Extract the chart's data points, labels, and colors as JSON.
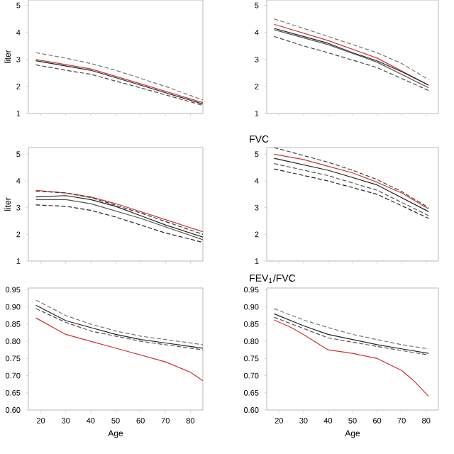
{
  "chart_data": [
    {
      "type": "line",
      "ylabel": "liter",
      "xlim": [
        15,
        85
      ],
      "ylim": [
        1,
        5.2
      ],
      "xticks": [
        20,
        30,
        40,
        50,
        60,
        70,
        80
      ],
      "yticks": [
        1,
        2,
        3,
        4,
        5
      ],
      "tick_labels": "y",
      "series": [
        {
          "color": "#777777",
          "line_style": "dashed",
          "x": [
            18,
            30,
            40,
            50,
            60,
            70,
            85
          ],
          "values": [
            3.25,
            3.05,
            2.85,
            2.6,
            2.3,
            2.0,
            1.5
          ]
        },
        {
          "color": "#cc3333",
          "line_style": "solid",
          "x": [
            18,
            40,
            60,
            85
          ],
          "values": [
            3.0,
            2.65,
            2.1,
            1.4
          ]
        },
        {
          "color": "#222222",
          "line_style": "solid",
          "x": [
            18,
            40,
            60,
            85
          ],
          "values": [
            2.95,
            2.6,
            2.05,
            1.35
          ]
        },
        {
          "color": "#444444",
          "line_style": "dashed",
          "x": [
            18,
            30,
            40,
            60,
            85
          ],
          "values": [
            2.8,
            2.6,
            2.45,
            1.95,
            1.3
          ]
        }
      ]
    },
    {
      "type": "line",
      "xlim": [
        15,
        85
      ],
      "ylim": [
        1,
        5.2
      ],
      "xticks": [
        20,
        30,
        40,
        50,
        60,
        70,
        80
      ],
      "yticks": [
        1,
        2,
        3,
        4,
        5
      ],
      "tick_labels": "y",
      "series": [
        {
          "color": "#777777",
          "line_style": "dashed",
          "x": [
            18,
            30,
            40,
            50,
            60,
            70,
            81
          ],
          "values": [
            4.5,
            4.15,
            3.85,
            3.55,
            3.25,
            2.85,
            2.25
          ]
        },
        {
          "color": "#cc3333",
          "line_style": "solid",
          "x": [
            18,
            40,
            60,
            81
          ],
          "values": [
            4.3,
            3.7,
            3.05,
            2.05
          ]
        },
        {
          "color": "#222222",
          "line_style": "solid",
          "x": [
            18,
            30,
            40,
            50,
            60,
            70,
            81
          ],
          "values": [
            4.15,
            3.85,
            3.6,
            3.25,
            2.95,
            2.55,
            2.05
          ]
        },
        {
          "color": "#555555",
          "line_style": "solid",
          "x": [
            18,
            40,
            60,
            81
          ],
          "values": [
            4.1,
            3.55,
            2.9,
            1.95
          ]
        },
        {
          "color": "#444444",
          "line_style": "dashed",
          "x": [
            18,
            30,
            40,
            60,
            81
          ],
          "values": [
            3.85,
            3.5,
            3.25,
            2.7,
            1.85
          ]
        }
      ]
    },
    {
      "type": "line",
      "ylabel": "liter",
      "xlim": [
        15,
        85
      ],
      "ylim": [
        1,
        5.25
      ],
      "xticks": [
        20,
        30,
        40,
        50,
        60,
        70,
        80
      ],
      "yticks": [
        1,
        2,
        3,
        4,
        5
      ],
      "tick_labels": "y",
      "series": [
        {
          "color": "#cc3333",
          "line_style": "solid",
          "x": [
            18,
            30,
            40,
            50,
            60,
            70,
            85
          ],
          "values": [
            3.65,
            3.55,
            3.4,
            3.15,
            2.85,
            2.55,
            2.1
          ]
        },
        {
          "color": "#333333",
          "line_style": "dashed",
          "x": [
            18,
            30,
            40,
            60,
            85
          ],
          "values": [
            3.62,
            3.55,
            3.38,
            2.8,
            2.0
          ]
        },
        {
          "color": "#222222",
          "line_style": "solid",
          "x": [
            18,
            30,
            40,
            50,
            60,
            70,
            85
          ],
          "values": [
            3.4,
            3.45,
            3.3,
            3.05,
            2.7,
            2.35,
            1.9
          ]
        },
        {
          "color": "#555555",
          "line_style": "solid",
          "x": [
            18,
            30,
            40,
            60,
            85
          ],
          "values": [
            3.3,
            3.3,
            3.15,
            2.6,
            1.8
          ]
        },
        {
          "color": "#222222",
          "line_style": "dashed",
          "x": [
            18,
            30,
            40,
            50,
            60,
            70,
            85
          ],
          "values": [
            3.1,
            3.05,
            2.9,
            2.65,
            2.35,
            2.05,
            1.7
          ]
        }
      ]
    },
    {
      "type": "line",
      "title": "FVC",
      "xlim": [
        15,
        85
      ],
      "ylim": [
        1,
        5.25
      ],
      "xticks": [
        20,
        30,
        40,
        50,
        60,
        70,
        80
      ],
      "yticks": [
        1,
        2,
        3,
        4,
        5
      ],
      "tick_labels": "y",
      "series": [
        {
          "color": "#444444",
          "line_style": "dashed",
          "x": [
            18,
            30,
            40,
            50,
            60,
            70,
            81
          ],
          "values": [
            5.25,
            4.95,
            4.7,
            4.4,
            4.05,
            3.6,
            3.0
          ]
        },
        {
          "color": "#cc3333",
          "line_style": "solid",
          "x": [
            18,
            30,
            40,
            50,
            60,
            70,
            81
          ],
          "values": [
            5.0,
            4.8,
            4.55,
            4.3,
            3.95,
            3.55,
            2.95
          ]
        },
        {
          "color": "#222222",
          "line_style": "solid",
          "x": [
            18,
            40,
            60,
            81
          ],
          "values": [
            4.85,
            4.4,
            3.85,
            2.85
          ]
        },
        {
          "color": "#555555",
          "line_style": "dashed",
          "x": [
            18,
            40,
            60,
            81
          ],
          "values": [
            4.65,
            4.2,
            3.65,
            2.7
          ]
        },
        {
          "color": "#222222",
          "line_style": "dashed",
          "x": [
            18,
            40,
            60,
            81
          ],
          "values": [
            4.45,
            4.0,
            3.5,
            2.6
          ]
        }
      ]
    },
    {
      "type": "line",
      "xlabel": "Age",
      "xlim": [
        15,
        85
      ],
      "ylim": [
        0.6,
        0.955
      ],
      "xticks": [
        20,
        30,
        40,
        50,
        60,
        70,
        80
      ],
      "yticks": [
        {
          "value": 0.6,
          "label": "0.60"
        },
        {
          "value": 0.65,
          "label": "0.65"
        },
        {
          "value": 0.7,
          "label": "0.70"
        },
        {
          "value": 0.75,
          "label": "0.75"
        },
        {
          "value": 0.8,
          "label": "0.80"
        },
        {
          "value": 0.85,
          "label": "0.85"
        },
        {
          "value": 0.9,
          "label": "0.90"
        },
        {
          "value": 0.95,
          "label": "0.95"
        }
      ],
      "series": [
        {
          "color": "#777777",
          "line_style": "dashed",
          "x": [
            18,
            30,
            40,
            50,
            60,
            70,
            85
          ],
          "values": [
            0.92,
            0.875,
            0.85,
            0.83,
            0.815,
            0.805,
            0.79
          ]
        },
        {
          "color": "#222222",
          "line_style": "solid",
          "x": [
            18,
            30,
            40,
            50,
            60,
            70,
            85
          ],
          "values": [
            0.905,
            0.86,
            0.84,
            0.82,
            0.805,
            0.795,
            0.78
          ]
        },
        {
          "color": "#555555",
          "line_style": "dashed",
          "x": [
            18,
            30,
            40,
            60,
            85
          ],
          "values": [
            0.895,
            0.855,
            0.83,
            0.8,
            0.775
          ]
        },
        {
          "color": "#cc3333",
          "line_style": "solid",
          "x": [
            18,
            30,
            40,
            50,
            60,
            70,
            80,
            85
          ],
          "values": [
            0.868,
            0.82,
            0.8,
            0.78,
            0.76,
            0.74,
            0.71,
            0.685
          ]
        }
      ]
    },
    {
      "type": "line",
      "title": "FEV$_{1}$/FVC",
      "xlabel": "Age",
      "xlim": [
        15,
        85
      ],
      "ylim": [
        0.6,
        0.955
      ],
      "xticks": [
        20,
        30,
        40,
        50,
        60,
        70,
        80
      ],
      "yticks": [
        {
          "value": 0.6,
          "label": "0.60"
        },
        {
          "value": 0.65,
          "label": "0.65"
        },
        {
          "value": 0.7,
          "label": "0.70"
        },
        {
          "value": 0.75,
          "label": "0.75"
        },
        {
          "value": 0.8,
          "label": "0.80"
        },
        {
          "value": 0.85,
          "label": "0.85"
        },
        {
          "value": 0.9,
          "label": "0.90"
        },
        {
          "value": 0.95,
          "label": "0.95"
        }
      ],
      "series": [
        {
          "color": "#777777",
          "line_style": "dashed",
          "x": [
            18,
            30,
            40,
            50,
            60,
            70,
            81
          ],
          "values": [
            0.895,
            0.862,
            0.84,
            0.82,
            0.805,
            0.79,
            0.778
          ]
        },
        {
          "color": "#222222",
          "line_style": "solid",
          "x": [
            18,
            30,
            40,
            50,
            60,
            70,
            81
          ],
          "values": [
            0.88,
            0.845,
            0.82,
            0.805,
            0.79,
            0.778,
            0.765
          ]
        },
        {
          "color": "#555555",
          "line_style": "dashed",
          "x": [
            18,
            40,
            60,
            81
          ],
          "values": [
            0.87,
            0.81,
            0.785,
            0.76
          ]
        },
        {
          "color": "#cc3333",
          "line_style": "solid",
          "x": [
            18,
            25,
            30,
            40,
            50,
            60,
            70,
            75,
            81
          ],
          "values": [
            0.862,
            0.84,
            0.82,
            0.775,
            0.765,
            0.75,
            0.715,
            0.685,
            0.64
          ]
        }
      ]
    }
  ]
}
